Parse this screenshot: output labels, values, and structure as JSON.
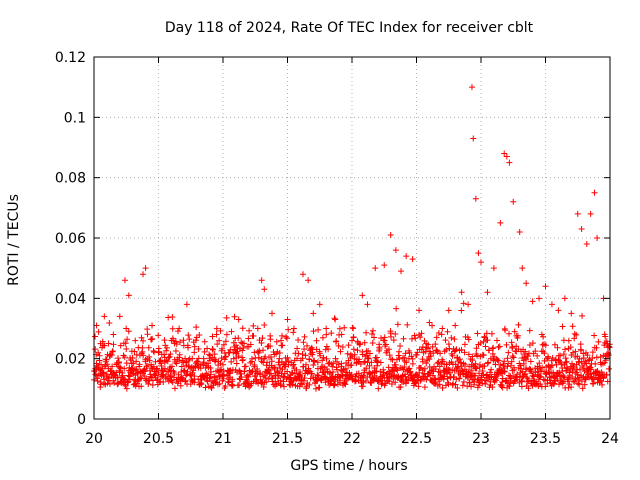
{
  "chart_data": {
    "type": "scatter",
    "title": "Day 118 of 2024, Rate Of TEC Index for receiver cblt",
    "xlabel": "GPS time / hours",
    "ylabel": "ROTI / TECUs",
    "xlim": [
      20,
      24
    ],
    "ylim": [
      0,
      0.12
    ],
    "x_ticks": [
      20,
      20.5,
      21,
      21.5,
      22,
      22.5,
      23,
      23.5,
      24
    ],
    "x_tick_labels": [
      "20",
      "20.5",
      "21",
      "21.5",
      "22",
      "22.5",
      "23",
      "23.5",
      "24"
    ],
    "y_ticks": [
      0,
      0.02,
      0.04,
      0.06,
      0.08,
      0.1,
      0.12
    ],
    "y_tick_labels": [
      "0",
      "0.02",
      "0.04",
      "0.06",
      "0.08",
      "0.1",
      "0.12"
    ],
    "grid": true,
    "marker": "+",
    "marker_color": "#ff0000",
    "series": [
      {
        "name": "ROTI",
        "points_note": "approximately 2000 dense samples between 0.003 and 0.03 TECU/s across 20-24 h; representative points reproduced below",
        "x": [
          20.02,
          20.05,
          20.08,
          20.12,
          20.15,
          20.2,
          20.24,
          20.27,
          20.32,
          20.38,
          20.4,
          20.45,
          20.5,
          20.55,
          20.6,
          20.66,
          20.72,
          20.78,
          20.85,
          20.9,
          20.95,
          21.0,
          21.05,
          21.1,
          21.15,
          21.2,
          21.27,
          21.3,
          21.32,
          21.38,
          21.45,
          21.5,
          21.55,
          21.62,
          21.66,
          21.7,
          21.75,
          21.8,
          21.87,
          21.92,
          22.0,
          22.08,
          22.12,
          22.18,
          22.25,
          22.3,
          22.34,
          22.38,
          22.42,
          22.47,
          22.52,
          22.6,
          22.7,
          22.75,
          22.8,
          22.85,
          22.9,
          22.93,
          22.94,
          22.96,
          22.98,
          23.0,
          23.05,
          23.1,
          23.15,
          23.18,
          23.2,
          23.22,
          23.25,
          23.3,
          23.32,
          23.35,
          23.4,
          23.45,
          23.5,
          23.55,
          23.6,
          23.65,
          23.7,
          23.75,
          23.78,
          23.82,
          23.85,
          23.88,
          23.9,
          23.95,
          23.98
        ],
        "y": [
          0.031,
          0.025,
          0.034,
          0.021,
          0.028,
          0.034,
          0.046,
          0.041,
          0.026,
          0.048,
          0.05,
          0.031,
          0.022,
          0.019,
          0.026,
          0.03,
          0.038,
          0.024,
          0.02,
          0.021,
          0.028,
          0.018,
          0.016,
          0.022,
          0.025,
          0.024,
          0.03,
          0.046,
          0.043,
          0.035,
          0.026,
          0.033,
          0.03,
          0.048,
          0.046,
          0.035,
          0.038,
          0.03,
          0.033,
          0.028,
          0.026,
          0.041,
          0.038,
          0.05,
          0.051,
          0.061,
          0.056,
          0.049,
          0.054,
          0.053,
          0.036,
          0.032,
          0.03,
          0.036,
          0.031,
          0.042,
          0.038,
          0.11,
          0.093,
          0.073,
          0.055,
          0.052,
          0.042,
          0.05,
          0.065,
          0.088,
          0.087,
          0.085,
          0.072,
          0.062,
          0.05,
          0.045,
          0.039,
          0.04,
          0.044,
          0.038,
          0.036,
          0.04,
          0.035,
          0.068,
          0.063,
          0.058,
          0.068,
          0.075,
          0.06,
          0.04,
          0.025
        ]
      }
    ]
  }
}
